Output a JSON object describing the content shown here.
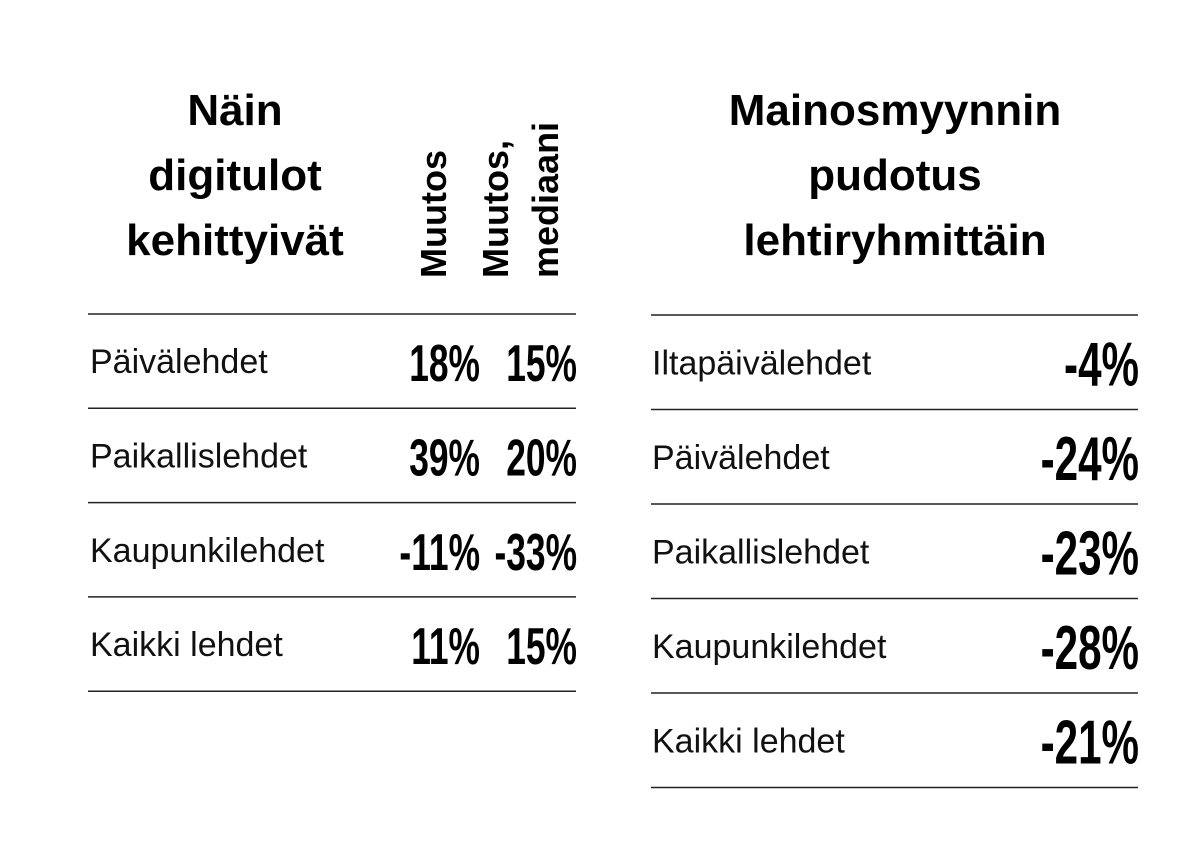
{
  "left": {
    "title": [
      "Näin",
      "digitulot",
      "kehittyivät"
    ],
    "columns": [
      [
        "Muutos"
      ],
      [
        "Muutos,",
        "mediaani"
      ]
    ],
    "rows": [
      [
        "Päivälehdet",
        "18%",
        "15%"
      ],
      [
        "Paikallislehdet",
        "39%",
        "20%"
      ],
      [
        "Kaupunkilehdet",
        "-11%",
        "-33%"
      ],
      [
        "Kaikki lehdet",
        "11%",
        "15%"
      ]
    ]
  },
  "right": {
    "title": [
      "Mainosmyynnin",
      "pudotus",
      "lehtiryhmittäin"
    ],
    "rows": [
      [
        "Iltapäivälehdet",
        "-4%"
      ],
      [
        "Päivälehdet",
        "-24%"
      ],
      [
        "Paikallislehdet",
        "-23%"
      ],
      [
        "Kaupunkilehdet",
        "-28%"
      ],
      [
        "Kaikki lehdet",
        "-21%"
      ]
    ]
  }
}
